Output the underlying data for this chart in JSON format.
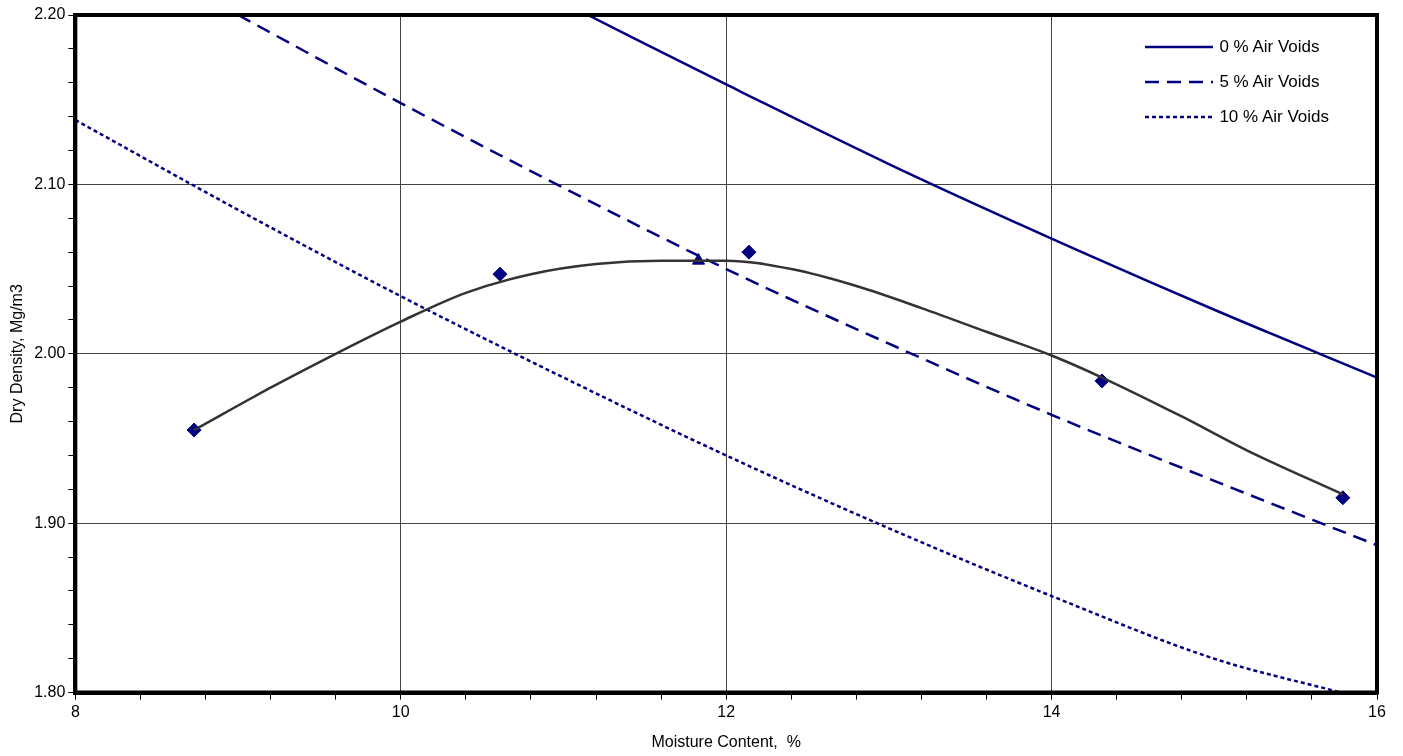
{
  "chart_data": {
    "type": "line",
    "xlabel": "Moisture Content,  %",
    "ylabel": "Dry Density, Mg/m3",
    "xlim": [
      8,
      16
    ],
    "ylim": [
      1.8,
      2.2
    ],
    "xticks": [
      8,
      {
        "value": 8.4,
        "label": null
      },
      {
        "value": 8.8,
        "label": null
      },
      {
        "value": 9.2,
        "label": null
      },
      {
        "value": 9.6,
        "label": null
      },
      10,
      {
        "value": 10.4,
        "label": null
      },
      {
        "value": 10.8,
        "label": null
      },
      {
        "value": 11.2,
        "label": null
      },
      {
        "value": 11.6,
        "label": null
      },
      12,
      {
        "value": 12.4,
        "label": null
      },
      {
        "value": 12.8,
        "label": null
      },
      {
        "value": 13.2,
        "label": null
      },
      {
        "value": 13.6,
        "label": null
      },
      14,
      {
        "value": 14.4,
        "label": null
      },
      {
        "value": 14.8,
        "label": null
      },
      {
        "value": 15.2,
        "label": null
      },
      {
        "value": 15.6,
        "label": null
      },
      16
    ],
    "yticks": [
      {
        "value": 1.8,
        "label": "1.80"
      },
      {
        "value": 1.82,
        "label": null
      },
      {
        "value": 1.84,
        "label": null
      },
      {
        "value": 1.86,
        "label": null
      },
      {
        "value": 1.88,
        "label": null
      },
      {
        "value": 1.9,
        "label": "1.90"
      },
      {
        "value": 1.92,
        "label": null
      },
      {
        "value": 1.94,
        "label": null
      },
      {
        "value": 1.96,
        "label": null
      },
      {
        "value": 1.98,
        "label": null
      },
      {
        "value": 2.0,
        "label": "2.00"
      },
      {
        "value": 2.02,
        "label": null
      },
      {
        "value": 2.04,
        "label": null
      },
      {
        "value": 2.06,
        "label": null
      },
      {
        "value": 2.08,
        "label": null
      },
      {
        "value": 2.1,
        "label": "2.10"
      },
      {
        "value": 2.12,
        "label": null
      },
      {
        "value": 2.14,
        "label": null
      },
      {
        "value": 2.16,
        "label": null
      },
      {
        "value": 2.18,
        "label": null
      },
      {
        "value": 2.2,
        "label": "2.20"
      }
    ],
    "grid": true,
    "legend": "top right",
    "series": [
      {
        "type": "line",
        "color": "#333333",
        "marker": "none",
        "line_style": "solid",
        "x": [
          8.73,
          9.2,
          9.6,
          10.0,
          10.4,
          10.8,
          11.2,
          11.6,
          12.0,
          12.4,
          12.8,
          13.2,
          13.6,
          14.0,
          14.31,
          14.8,
          15.2,
          15.79
        ],
        "values": [
          1.955,
          1.98,
          2.0,
          2.019,
          2.036,
          2.047,
          2.053,
          2.055,
          2.055,
          2.05,
          2.04,
          2.027,
          2.013,
          1.999,
          1.986,
          1.963,
          1.943,
          1.917
        ]
      },
      {
        "type": "scatter",
        "color": "#000080",
        "marker": "diamond",
        "x": [
          8.73,
          10.61,
          12.14,
          14.31,
          15.79
        ],
        "values": [
          1.955,
          2.047,
          2.06,
          1.984,
          1.915
        ]
      },
      {
        "type": "scatter",
        "color": "#000080",
        "marker": "triangle",
        "x": [
          11.83
        ],
        "values": [
          2.055
        ]
      },
      {
        "type": "line",
        "name": "0 % Air Voids",
        "color": "#000080",
        "marker": "none",
        "line_style": "solid",
        "x": [
          11.15,
          12,
          13,
          14,
          15,
          16
        ],
        "values": [
          2.2,
          2.159,
          2.112,
          2.068,
          2.026,
          1.986
        ]
      },
      {
        "type": "line",
        "name": "5 % Air Voids",
        "color": "#000080",
        "marker": "none",
        "line_style": "dashed",
        "x": [
          9.0,
          10,
          11,
          12,
          13,
          14,
          15,
          16
        ],
        "values": [
          2.2,
          2.148,
          2.098,
          2.05,
          2.006,
          1.964,
          1.925,
          1.887
        ]
      },
      {
        "type": "line",
        "name": "10 % Air Voids",
        "color": "#000080",
        "marker": "none",
        "line_style": "dotted",
        "x": [
          8,
          9,
          10,
          11,
          12,
          13,
          14,
          15,
          15.78
        ],
        "values": [
          2.138,
          2.085,
          2.034,
          1.986,
          1.94,
          1.897,
          1.857,
          1.82,
          1.8
        ]
      }
    ]
  }
}
